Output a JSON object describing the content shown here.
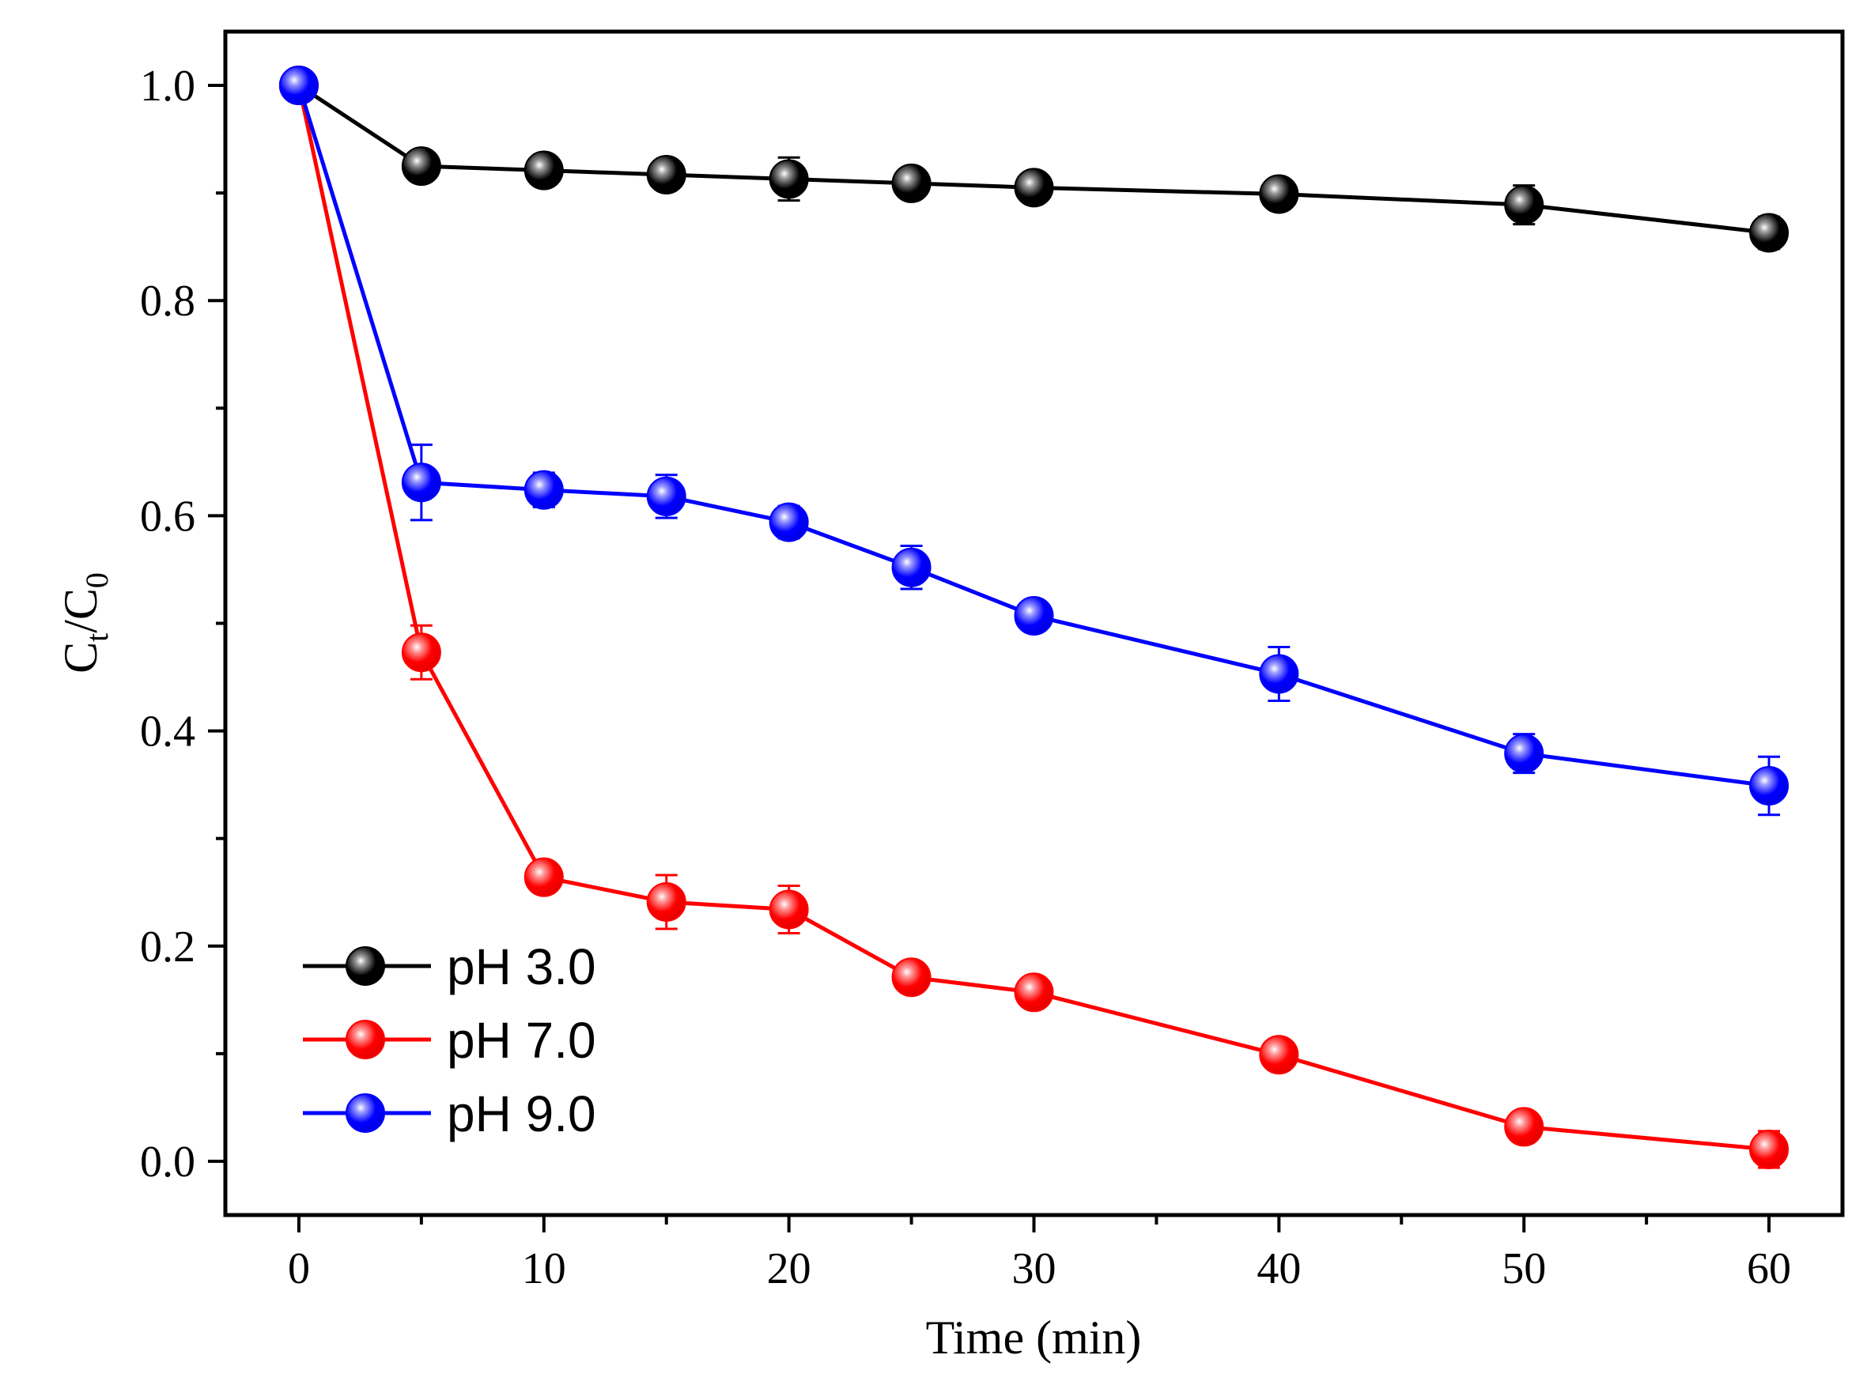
{
  "chart_data": {
    "type": "line",
    "title": "",
    "xlabel": "Time (min)",
    "ylabel": {
      "base": "C",
      "sub1": "t",
      "sep": "/C",
      "sub2": "0"
    },
    "xlim": [
      -3,
      63
    ],
    "ylim": [
      -0.05,
      1.05
    ],
    "x_ticks": [
      0,
      10,
      20,
      30,
      40,
      50,
      60
    ],
    "x_tick_labels": [
      "0",
      "10",
      "20",
      "30",
      "40",
      "50",
      "60"
    ],
    "y_ticks": [
      0.0,
      0.2,
      0.4,
      0.6,
      0.8,
      1.0
    ],
    "y_tick_labels": [
      "0.0",
      "0.2",
      "0.4",
      "0.6",
      "0.8",
      "1.0"
    ],
    "x_minor_ticks": [
      5,
      15,
      25,
      35,
      45,
      55
    ],
    "y_minor_ticks": [
      0.1,
      0.3,
      0.5,
      0.7,
      0.9
    ],
    "grid": false,
    "legend_position": "bottom-left",
    "x": [
      0,
      5,
      10,
      15,
      20,
      25,
      30,
      40,
      50,
      60
    ],
    "series": [
      {
        "name": "pH 3.0",
        "color": "#000000",
        "values": [
          1.0,
          0.925,
          0.921,
          0.917,
          0.913,
          0.909,
          0.905,
          0.899,
          0.889,
          0.863
        ],
        "errors": [
          0.0,
          0.008,
          0.008,
          0.01,
          0.02,
          0.01,
          0.006,
          0.01,
          0.018,
          0.015
        ]
      },
      {
        "name": "pH 7.0",
        "color": "#ff0000",
        "values": [
          1.0,
          0.473,
          0.264,
          0.241,
          0.234,
          0.171,
          0.157,
          0.099,
          0.032,
          0.011
        ],
        "errors": [
          0.0,
          0.025,
          0.01,
          0.025,
          0.022,
          0.01,
          0.01,
          0.01,
          0.01,
          0.017
        ]
      },
      {
        "name": "pH 9.0",
        "color": "#0000ff",
        "values": [
          1.0,
          0.631,
          0.624,
          0.618,
          0.594,
          0.552,
          0.507,
          0.453,
          0.379,
          0.349
        ],
        "errors": [
          0.0,
          0.035,
          0.016,
          0.02,
          0.015,
          0.02,
          0.01,
          0.025,
          0.018,
          0.027
        ]
      }
    ]
  }
}
